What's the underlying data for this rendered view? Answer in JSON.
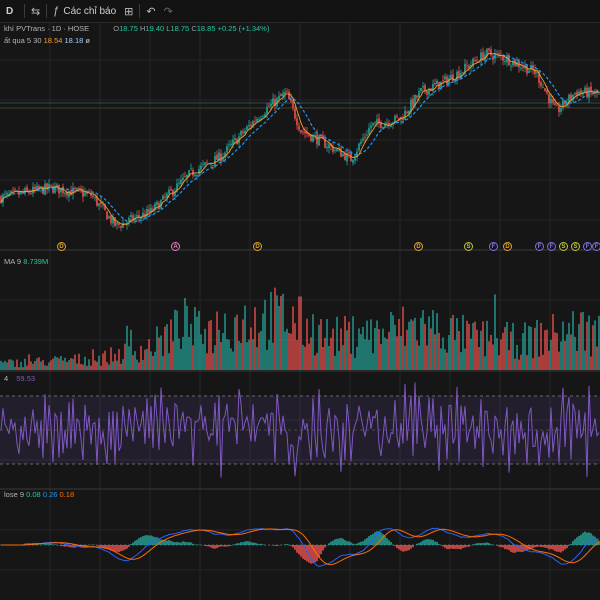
{
  "toolbar": {
    "symbol_label": "D",
    "indicators_label": "Các chỉ báo"
  },
  "main_legend": {
    "title": "khí PVTrans · 1D · HOSE",
    "o_label": "O",
    "o": "18.75",
    "h_label": "H",
    "h": "19.40",
    "l_label": "L",
    "l": "18.75",
    "c_label": "C",
    "c": "18.85",
    "change": "+0.25 (+1.34%)"
  },
  "ma_legend": {
    "name": "ất qua 5 30",
    "v1": "18.54",
    "v2": "18.18",
    "v3": "ø"
  },
  "volume_legend": {
    "name": "MA 9",
    "value": "8.739M"
  },
  "rsi_legend": {
    "name": "4",
    "value": "59.53"
  },
  "macd_legend": {
    "name": "lose 9",
    "v1": "0.08",
    "v2": "0.26",
    "v3": "0.18"
  },
  "events": [
    {
      "letter": "D",
      "color": "#e0a030"
    },
    {
      "letter": "A",
      "color": "#e080c0"
    },
    {
      "letter": "D",
      "color": "#e0a030"
    },
    {
      "letter": "D",
      "color": "#e0a030"
    },
    {
      "letter": "S",
      "color": "#c0c040"
    },
    {
      "letter": "F",
      "color": "#8070e0"
    },
    {
      "letter": "D",
      "color": "#e0a030"
    },
    {
      "letter": "F",
      "color": "#8070e0"
    },
    {
      "letter": "F",
      "color": "#8070e0"
    },
    {
      "letter": "S",
      "color": "#c0c040"
    },
    {
      "letter": "S",
      "color": "#c0c040"
    },
    {
      "letter": "F",
      "color": "#8070e0"
    },
    {
      "letter": "F",
      "color": "#8070e0"
    }
  ],
  "chart_data": {
    "type": "candlestick",
    "colors": {
      "up": "#26a69a",
      "down": "#ef5350",
      "ma_fast": "#f0a030",
      "ma_slow": "#2196f3",
      "rsi": "#7e57c2",
      "macd": "#2962ff",
      "signal": "#ff6d00",
      "hist_up": "#26a69a",
      "hist_down": "#ef5350"
    },
    "price_anchors": [
      [
        0,
        11.8
      ],
      [
        50,
        12.6
      ],
      [
        90,
        12.0
      ],
      [
        115,
        9.4
      ],
      [
        150,
        10.6
      ],
      [
        190,
        13.8
      ],
      [
        220,
        15.2
      ],
      [
        260,
        18.8
      ],
      [
        285,
        20.5
      ],
      [
        300,
        17.4
      ],
      [
        330,
        16.0
      ],
      [
        350,
        15.0
      ],
      [
        370,
        17.8
      ],
      [
        400,
        18.4
      ],
      [
        420,
        20.6
      ],
      [
        440,
        21.3
      ],
      [
        460,
        22.3
      ],
      [
        485,
        23.8
      ],
      [
        505,
        23.4
      ],
      [
        535,
        22.2
      ],
      [
        555,
        18.9
      ],
      [
        575,
        20.6
      ],
      [
        600,
        20.4
      ]
    ],
    "volume_anchors": [
      [
        0,
        0.08
      ],
      [
        100,
        0.14
      ],
      [
        150,
        0.28
      ],
      [
        185,
        0.55
      ],
      [
        200,
        0.45
      ],
      [
        240,
        0.6
      ],
      [
        285,
        0.65
      ],
      [
        330,
        0.4
      ],
      [
        380,
        0.45
      ],
      [
        420,
        0.55
      ],
      [
        470,
        0.4
      ],
      [
        520,
        0.35
      ],
      [
        580,
        0.5
      ],
      [
        600,
        0.45
      ]
    ],
    "rsi_overbought": 70,
    "rsi_oversold": 30,
    "rsi_range": [
      20,
      80
    ],
    "price_range": [
      8,
      26
    ],
    "bars": 300
  }
}
